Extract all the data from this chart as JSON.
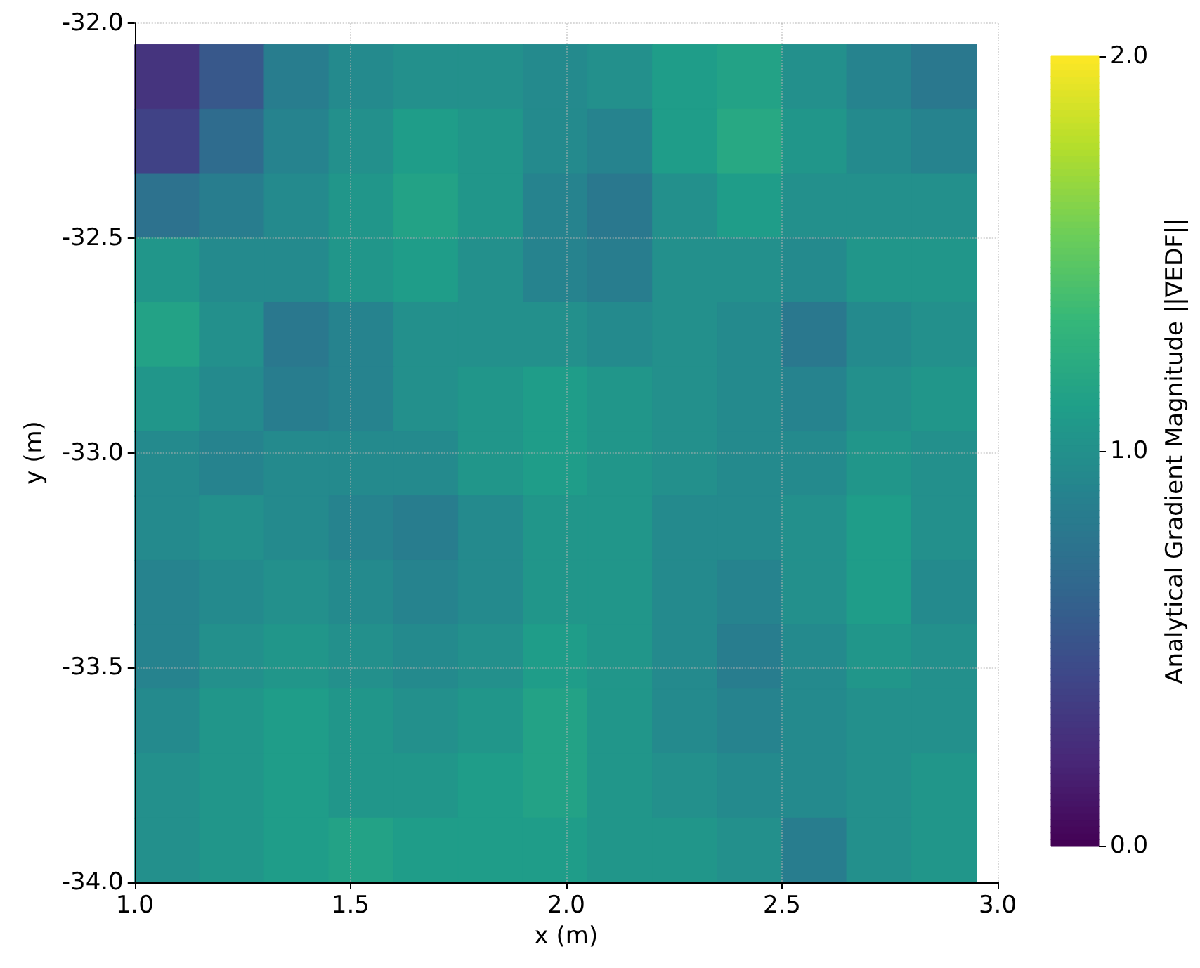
{
  "chart_data": {
    "type": "heatmap",
    "xlabel": "x (m)",
    "ylabel": "y (m)",
    "clabel": "Analytical Gradient Magnitude ||∇EDF||",
    "x": [
      1.075,
      1.225,
      1.375,
      1.525,
      1.675,
      1.825,
      1.975,
      2.125,
      2.275,
      2.425,
      2.575,
      2.725,
      2.875
    ],
    "y": [
      -32.125,
      -32.275,
      -32.425,
      -32.575,
      -32.725,
      -32.875,
      -33.025,
      -33.175,
      -33.325,
      -33.475,
      -33.625,
      -33.775,
      -33.925
    ],
    "cells": [
      [
        0.3,
        0.55,
        0.85,
        0.95,
        1.0,
        1.0,
        0.95,
        1.0,
        1.1,
        1.15,
        1.0,
        0.9,
        0.8
      ],
      [
        0.4,
        0.7,
        0.9,
        1.0,
        1.1,
        1.05,
        0.95,
        0.9,
        1.1,
        1.2,
        1.05,
        0.95,
        0.9
      ],
      [
        0.75,
        0.85,
        0.95,
        1.05,
        1.15,
        1.05,
        0.9,
        0.8,
        1.0,
        1.1,
        1.0,
        1.0,
        1.0
      ],
      [
        1.05,
        0.95,
        0.95,
        1.05,
        1.1,
        1.0,
        0.9,
        0.85,
        1.0,
        1.0,
        0.95,
        1.05,
        1.05
      ],
      [
        1.15,
        1.0,
        0.8,
        0.9,
        1.0,
        1.0,
        1.0,
        0.95,
        1.0,
        0.95,
        0.8,
        0.95,
        1.0
      ],
      [
        1.05,
        0.95,
        0.85,
        0.9,
        1.0,
        1.05,
        1.1,
        1.05,
        1.0,
        0.95,
        0.9,
        1.0,
        1.05
      ],
      [
        0.95,
        0.9,
        0.95,
        0.95,
        0.95,
        1.05,
        1.1,
        1.05,
        1.0,
        0.95,
        0.95,
        1.05,
        1.0
      ],
      [
        0.95,
        1.0,
        0.95,
        0.9,
        0.85,
        0.95,
        1.05,
        1.05,
        0.95,
        0.95,
        1.0,
        1.1,
        1.0
      ],
      [
        0.9,
        0.95,
        1.0,
        0.95,
        0.9,
        0.95,
        1.05,
        1.05,
        0.95,
        0.9,
        1.0,
        1.1,
        0.95
      ],
      [
        0.9,
        1.0,
        1.05,
        1.0,
        0.95,
        1.0,
        1.1,
        1.05,
        0.95,
        0.85,
        0.95,
        1.05,
        1.0
      ],
      [
        0.95,
        1.05,
        1.1,
        1.05,
        1.0,
        1.05,
        1.15,
        1.05,
        0.95,
        0.9,
        0.95,
        1.0,
        1.0
      ],
      [
        1.0,
        1.05,
        1.1,
        1.05,
        1.05,
        1.1,
        1.15,
        1.05,
        1.0,
        0.95,
        0.95,
        1.0,
        1.05
      ],
      [
        1.0,
        1.05,
        1.1,
        1.15,
        1.1,
        1.1,
        1.1,
        1.05,
        1.05,
        1.0,
        0.85,
        1.0,
        1.05
      ]
    ],
    "xlim": [
      1.0,
      3.0
    ],
    "ylim": [
      -34.0,
      -32.0
    ],
    "xticks": [
      {
        "value": 1.0,
        "label": "1.0"
      },
      {
        "value": 1.5,
        "label": "1.5"
      },
      {
        "value": 2.0,
        "label": "2.0"
      },
      {
        "value": 2.5,
        "label": "2.5"
      },
      {
        "value": 3.0,
        "label": "3.0"
      }
    ],
    "yticks": [
      {
        "value": -34.0,
        "label": "-34.0"
      },
      {
        "value": -33.5,
        "label": "-33.5"
      },
      {
        "value": -33.0,
        "label": "-33.0"
      },
      {
        "value": -32.5,
        "label": "-32.5"
      },
      {
        "value": -32.0,
        "label": "-32.0"
      }
    ],
    "clim": [
      0,
      2
    ],
    "cticks": [
      {
        "value": 0,
        "label": "0.0"
      },
      {
        "value": 1,
        "label": "1.0"
      },
      {
        "value": 2,
        "label": "2.0"
      }
    ],
    "grid": true
  }
}
